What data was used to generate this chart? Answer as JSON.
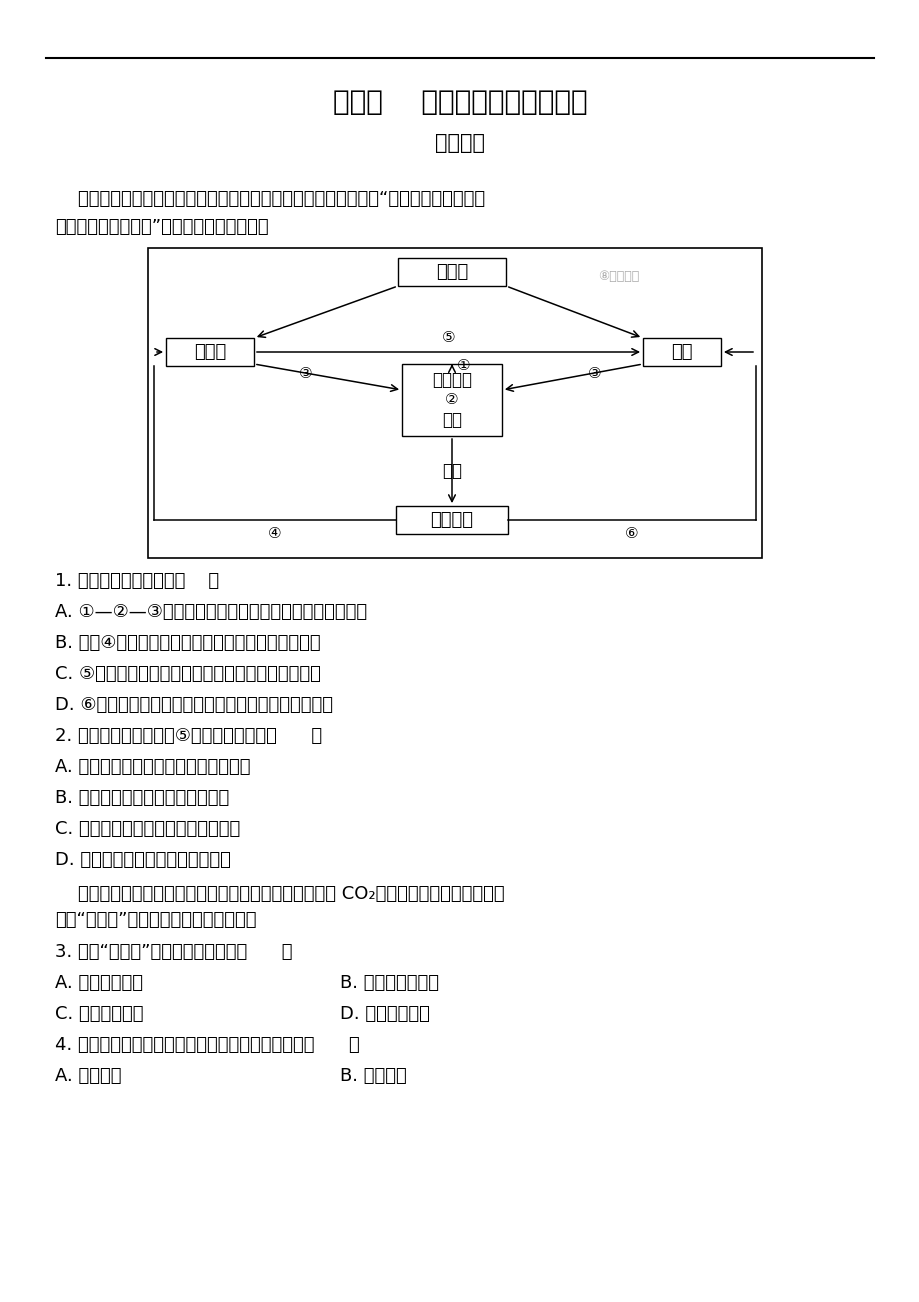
{
  "title": "第一讲    自然地理环境的整体性",
  "subtitle": "基础题组",
  "bg_color": "#ffffff",
  "para1_line1": "    倡导发展低碳经济和低碳生活已成为当今社会的主旋律。下图为“碳物质在地球各圈层",
  "para1_line2": "中的循环过程示意图”。读图完成下面两题。",
  "q1": "1. 下列叙述，正确的是（    ）",
  "q1a": "A. ①—②—③反映碳在大气圈、水圈、岩石圈循环的过程",
  "q1b": "B. 控制④环节的人类活动是发展低碳经济的途径之一",
  "q1c": "C. ⑤环节循环速度如果加快，可以减缓碳排放的速度",
  "q1d": "D. ⑥环节在人类的作用下，会导致岩石圈物质循环受阵",
  "q2": "2. 有关人类活动作用于⑤及可能的后果是（      ）",
  "q2a": "A. 人工增雨改变水资源的空间分布格局",
  "q2b": "B. 建设水电站后容易加剧洪淝灾害",
  "q2c": "C. 发展火电站可能导致沿海低地被淨",
  "q2d": "D. 北京冬季燃煤取暖导致河流污染",
  "para2_line1": "    海洋浮游植物通过光合作用与呼吸作用能够对大气中的 CO₂浓度进行调节，有人称之为",
  "para2_line2": "海洋“生物泵”作用。据此完成下面两题。",
  "q3": "3. 海洋“生物泵”作用的影响可能是（      ）",
  "q3a": "A. 缓解全球变暖",
  "q3b": "B. 缩小臭氧层空洞",
  "q3c": "C. 减轻酸雨污染",
  "q3d": "D. 加快洋流流速",
  "q4": "4. 材料中体现的地理要素相互作用产生的新功能是（      ）",
  "q4a": "A. 循环功能",
  "q4b": "B. 转化功能",
  "watermark": "⑧正确教育"
}
